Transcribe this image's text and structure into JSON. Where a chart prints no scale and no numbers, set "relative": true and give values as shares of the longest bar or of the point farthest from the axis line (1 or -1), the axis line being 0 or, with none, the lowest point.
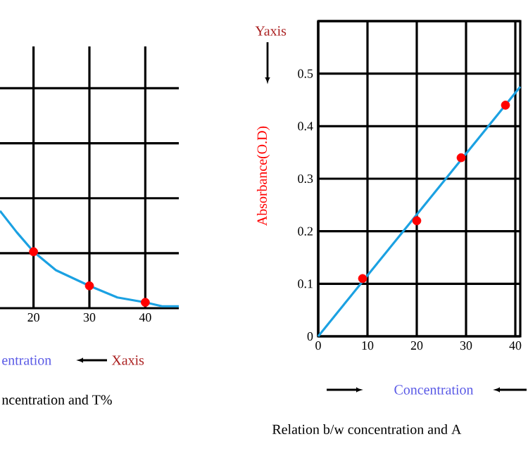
{
  "chart_data": [
    {
      "type": "line",
      "xlabel": "entration",
      "x": [
        14,
        17,
        20,
        24,
        30,
        35,
        40,
        43,
        46
      ],
      "xlim": [
        14,
        46
      ],
      "xticks": [
        20,
        30,
        40
      ],
      "relative": true,
      "grid": true,
      "tick_labels": "x",
      "series": [
        {
          "color": "#1ba1e2",
          "values": [
            1,
            0.78,
            0.58,
            0.39,
            0.23,
            0.11,
            0.06,
            0.02,
            0.02
          ]
        },
        {
          "type": "scatter",
          "marker": "circle",
          "color": "#ff0000",
          "x": [
            20,
            30,
            40
          ],
          "values": [
            0.58,
            0.23,
            0.06
          ]
        }
      ],
      "annotations": [
        "Xaxis",
        "ncentration and T%"
      ]
    },
    {
      "type": "line",
      "xlabel": "Concentration",
      "ylabel": "Absorbance(O.D)",
      "xlim": [
        0,
        41
      ],
      "ylim": [
        0,
        0.6
      ],
      "xticks": [
        0,
        10,
        20,
        30,
        40
      ],
      "yticks": [
        0,
        0.1,
        0.2,
        0.3,
        0.4,
        0.5,
        {
          "value": 0.6,
          "label": null
        }
      ],
      "grid": true,
      "series": [
        {
          "color": "#1ba1e2",
          "x": [
            0,
            41
          ],
          "values": [
            0,
            0.475
          ]
        },
        {
          "type": "scatter",
          "marker": "circle",
          "color": "#ff0000",
          "x": [
            9,
            20,
            29,
            38
          ],
          "values": [
            0.11,
            0.22,
            0.34,
            0.44
          ]
        }
      ],
      "annotations": [
        "Yaxis",
        "Relation b/w concentration and A"
      ]
    }
  ]
}
